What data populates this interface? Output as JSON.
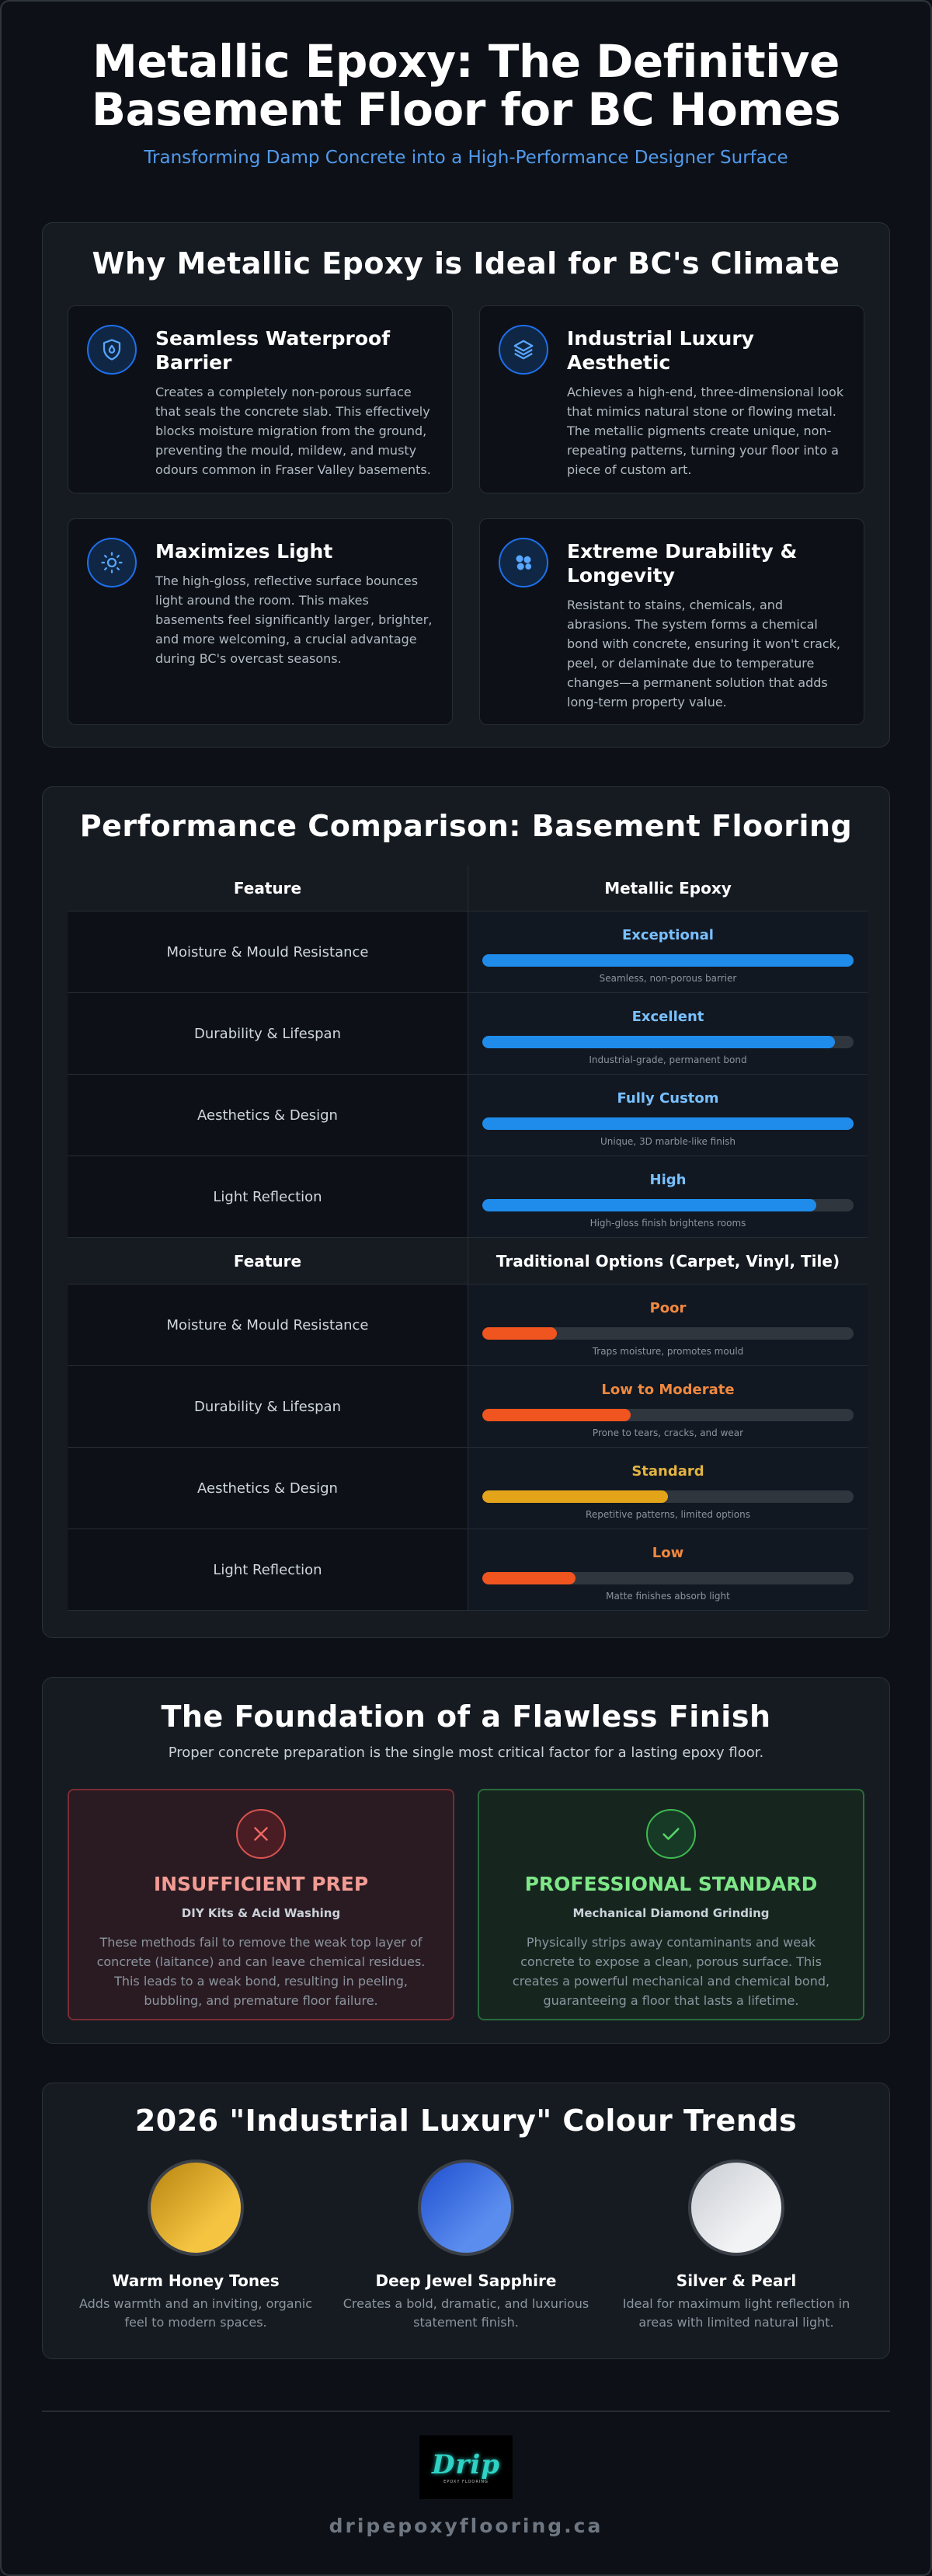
{
  "hero": {
    "title": "Metallic Epoxy: The Definitive Basement Floor for BC Homes",
    "subtitle": "Transforming Damp Concrete into a High-Performance Designer Surface"
  },
  "why": {
    "title": "Why Metallic Epoxy is Ideal for BC's Climate",
    "cards": [
      {
        "icon": "shield-droplet-icon",
        "title": "Seamless Waterproof Barrier",
        "text": "Creates a completely non-porous surface that seals the concrete slab. This effectively blocks moisture migration from the ground, preventing the mould, mildew, and musty odours common in Fraser Valley basements."
      },
      {
        "icon": "layers-icon",
        "title": "Industrial Luxury Aesthetic",
        "text": "Achieves a high-end, three-dimensional look that mimics natural stone or flowing metal. The metallic pigments create unique, non-repeating patterns, turning your floor into a piece of custom art."
      },
      {
        "icon": "sun-icon",
        "title": "Maximizes Light",
        "text": "The high-gloss, reflective surface bounces light around the room. This makes basements feel significantly larger, brighter, and more welcoming, a crucial advantage during BC's overcast seasons."
      },
      {
        "icon": "molecule-icon",
        "title": "Extreme Durability & Longevity",
        "text": "Resistant to stains, chemicals, and abrasions. The system forms a chemical bond with concrete, ensuring it won't crack, peel, or delaminate due to temperature changes—a permanent solution that adds long-term property value."
      }
    ]
  },
  "perf": {
    "title": "Performance Comparison: Basement Flooring",
    "groups": [
      {
        "feature_header": "Feature",
        "option_header": "Metallic Epoxy",
        "rows": [
          {
            "feature": "Moisture & Mould Resistance",
            "rating": "Exceptional",
            "level": 1.0,
            "note": "Seamless, non-porous barrier",
            "tone": "good"
          },
          {
            "feature": "Durability & Lifespan",
            "rating": "Excellent",
            "level": 0.95,
            "note": "Industrial-grade, permanent bond",
            "tone": "good"
          },
          {
            "feature": "Aesthetics & Design",
            "rating": "Fully Custom",
            "level": 1.0,
            "note": "Unique, 3D marble-like finish",
            "tone": "good"
          },
          {
            "feature": "Light Reflection",
            "rating": "High",
            "level": 0.9,
            "note": "High-gloss finish brightens rooms",
            "tone": "good"
          }
        ]
      },
      {
        "feature_header": "Feature",
        "option_header": "Traditional Options (Carpet, Vinyl, Tile)",
        "rows": [
          {
            "feature": "Moisture & Mould Resistance",
            "rating": "Poor",
            "level": 0.2,
            "note": "Traps moisture, promotes mould",
            "tone": "poor"
          },
          {
            "feature": "Durability & Lifespan",
            "rating": "Low to Moderate",
            "level": 0.4,
            "note": "Prone to tears, cracks, and wear",
            "tone": "poor"
          },
          {
            "feature": "Aesthetics & Design",
            "rating": "Standard",
            "level": 0.5,
            "note": "Repetitive patterns, limited options",
            "tone": "std"
          },
          {
            "feature": "Light Reflection",
            "rating": "Low",
            "level": 0.25,
            "note": "Matte finishes absorb light",
            "tone": "poor"
          }
        ]
      }
    ]
  },
  "found": {
    "title": "The Foundation of a Flawless Finish",
    "lead": "Proper concrete preparation is the single most critical factor for a lasting epoxy floor.",
    "bad": {
      "icon": "x-icon",
      "title": "INSUFFICIENT PREP",
      "kind": "DIY Kits & Acid Washing",
      "text": "These methods fail to remove the weak top layer of concrete (laitance) and can leave chemical residues. This leads to a weak bond, resulting in peeling, bubbling, and premature floor failure."
    },
    "ok": {
      "icon": "check-icon",
      "title": "PROFESSIONAL STANDARD",
      "kind": "Mechanical Diamond Grinding",
      "text": "Physically strips away contaminants and weak concrete to expose a clean, porous surface. This creates a powerful mechanical and chemical bond, guaranteeing a floor that lasts a lifetime."
    }
  },
  "trend": {
    "title": "2026 \"Industrial Luxury\" Colour Trends",
    "swatches": [
      {
        "name": "Warm Honey Tones",
        "text": "Adds warmth and an inviting, organic feel to modern spaces.",
        "from": "#b7830f",
        "to": "#f5c542"
      },
      {
        "name": "Deep Jewel Sapphire",
        "text": "Creates a bold, dramatic, and luxurious statement finish.",
        "from": "#1f4fcf",
        "to": "#5b8def"
      },
      {
        "name": "Silver & Pearl",
        "text": "Ideal for maximum light reflection in areas with limited natural light.",
        "from": "#c7cbd1",
        "to": "#f2f3f5"
      }
    ]
  },
  "footer": {
    "logo_text": "Drip",
    "logo_tagline": "EPOXY FLOORING",
    "site": "dripepoxyflooring.ca"
  },
  "colors": {
    "accent": "#58a6ff",
    "good": "#1f8ceb",
    "poor": "#f0541f",
    "standard": "#e3a41a"
  }
}
